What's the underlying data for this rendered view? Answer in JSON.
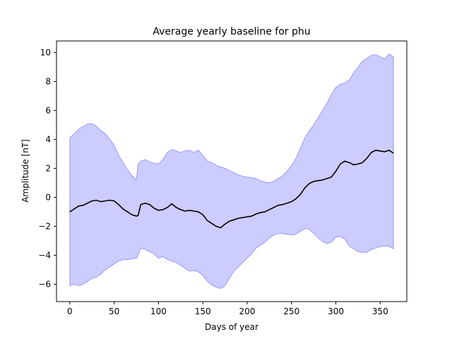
{
  "chart_data": {
    "type": "area",
    "title": "Average yearly baseline for phu",
    "xlabel": "Days of year",
    "ylabel": "Amplitude [nT]",
    "xlim": [
      -15,
      380
    ],
    "ylim": [
      -7.2,
      10.8
    ],
    "xticks": [
      0,
      50,
      100,
      150,
      200,
      250,
      300,
      350
    ],
    "yticks": [
      -6,
      -4,
      -2,
      0,
      2,
      4,
      6,
      8,
      10
    ],
    "grid": false,
    "legend": "none",
    "colors": {
      "band_fill": "#ccccff",
      "band_edge": "#9999ff",
      "line": "#000000"
    },
    "series": [
      {
        "x": [
          0,
          5,
          10,
          15,
          20,
          25,
          30,
          35,
          40,
          45,
          50,
          55,
          60,
          65,
          70,
          75,
          77,
          80,
          85,
          90,
          95,
          100,
          105,
          110,
          115,
          120,
          125,
          130,
          135,
          140,
          145,
          150,
          155,
          160,
          165,
          170,
          175,
          180,
          185,
          190,
          195,
          200,
          205,
          210,
          215,
          220,
          225,
          230,
          235,
          240,
          245,
          250,
          255,
          260,
          265,
          270,
          275,
          280,
          285,
          290,
          295,
          300,
          305,
          310,
          315,
          320,
          325,
          330,
          335,
          340,
          345,
          350,
          355,
          360,
          365
        ],
        "values": [
          -1.0,
          -0.8,
          -0.6,
          -0.55,
          -0.4,
          -0.25,
          -0.2,
          -0.3,
          -0.25,
          -0.2,
          -0.25,
          -0.5,
          -0.8,
          -1.0,
          -1.2,
          -1.3,
          -1.25,
          -0.5,
          -0.4,
          -0.5,
          -0.75,
          -0.9,
          -0.85,
          -0.7,
          -0.45,
          -0.7,
          -0.85,
          -0.95,
          -0.9,
          -0.95,
          -1.0,
          -1.2,
          -1.6,
          -1.8,
          -2.0,
          -2.1,
          -1.85,
          -1.65,
          -1.55,
          -1.45,
          -1.4,
          -1.35,
          -1.3,
          -1.15,
          -1.05,
          -1.0,
          -0.85,
          -0.7,
          -0.55,
          -0.5,
          -0.4,
          -0.3,
          -0.1,
          0.2,
          0.65,
          0.95,
          1.1,
          1.15,
          1.2,
          1.3,
          1.4,
          1.8,
          2.3,
          2.5,
          2.4,
          2.25,
          2.3,
          2.4,
          2.7,
          3.1,
          3.25,
          3.2,
          3.15,
          3.25,
          3.05
        ]
      }
    ],
    "band_upper": [
      4.1,
      4.4,
      4.7,
      4.9,
      5.05,
      5.1,
      4.9,
      4.6,
      4.4,
      4.0,
      3.6,
      2.9,
      2.4,
      1.9,
      1.5,
      1.2,
      2.3,
      2.5,
      2.6,
      2.45,
      2.35,
      2.3,
      2.6,
      3.1,
      3.3,
      3.2,
      3.1,
      3.2,
      3.25,
      3.1,
      3.25,
      2.9,
      2.5,
      2.4,
      2.2,
      2.1,
      2.0,
      1.85,
      1.7,
      1.55,
      1.45,
      1.4,
      1.35,
      1.3,
      1.15,
      1.05,
      1.0,
      1.1,
      1.3,
      1.5,
      1.8,
      2.2,
      2.7,
      3.4,
      4.1,
      4.6,
      5.0,
      5.5,
      6.0,
      6.5,
      7.1,
      7.6,
      7.8,
      7.9,
      8.1,
      8.6,
      9.0,
      9.4,
      9.6,
      9.8,
      9.85,
      9.7,
      9.55,
      9.9,
      9.7
    ],
    "band_lower": [
      -6.1,
      -6.0,
      -6.1,
      -6.0,
      -5.8,
      -5.6,
      -5.5,
      -5.3,
      -5.0,
      -4.8,
      -4.6,
      -4.4,
      -4.3,
      -4.3,
      -4.25,
      -4.2,
      -4.0,
      -3.5,
      -3.6,
      -3.75,
      -3.9,
      -4.2,
      -4.1,
      -4.3,
      -4.4,
      -4.5,
      -4.7,
      -4.9,
      -5.1,
      -5.05,
      -5.15,
      -5.4,
      -5.8,
      -6.05,
      -6.2,
      -6.3,
      -6.1,
      -5.6,
      -5.1,
      -4.8,
      -4.5,
      -4.2,
      -3.9,
      -3.5,
      -3.3,
      -3.1,
      -2.8,
      -2.6,
      -2.5,
      -2.5,
      -2.55,
      -2.6,
      -2.55,
      -2.35,
      -2.15,
      -2.2,
      -2.5,
      -2.8,
      -3.05,
      -3.2,
      -3.1,
      -2.75,
      -2.7,
      -2.9,
      -3.35,
      -3.55,
      -3.75,
      -3.8,
      -3.8,
      -3.6,
      -3.5,
      -3.4,
      -3.35,
      -3.4,
      -3.55
    ]
  }
}
